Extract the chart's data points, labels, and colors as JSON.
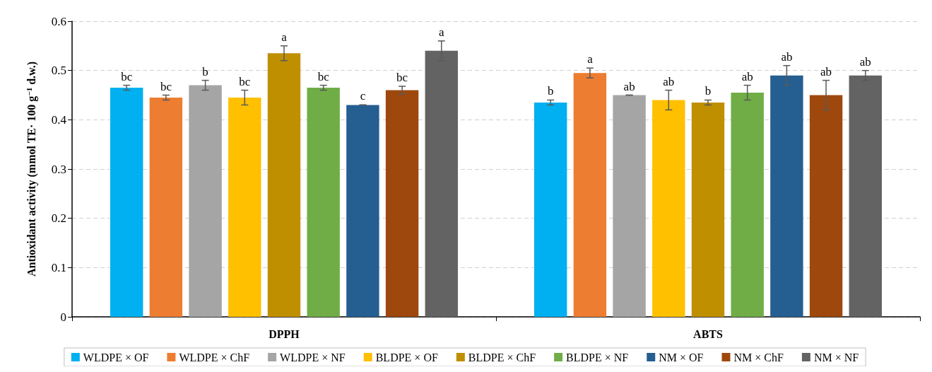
{
  "chart_data": {
    "type": "bar",
    "ylabel": "Antioxidant activity (mmol TE· 100 g$^{−1}$ d.w.)",
    "categories": [
      "DPPH",
      "ABTS"
    ],
    "ylim": [
      0,
      0.6
    ],
    "yticks": [
      0,
      0.1,
      0.2,
      0.3,
      0.4,
      0.5,
      0.6
    ],
    "grid": "y",
    "legend": "bottom",
    "series": [
      {
        "name": "WLDPE × OF",
        "color": "#00b0f0",
        "values": [
          0.465,
          0.435
        ],
        "errors": [
          0.005,
          0.005
        ],
        "value_labels": [
          "bc",
          "b"
        ]
      },
      {
        "name": "WLDPE × ChF",
        "color": "#ed7d31",
        "values": [
          0.445,
          0.495
        ],
        "errors": [
          0.005,
          0.01
        ],
        "value_labels": [
          "bc",
          "a"
        ]
      },
      {
        "name": "WLDPE × NF",
        "color": "#a5a5a5",
        "values": [
          0.47,
          0.45
        ],
        "errors": [
          0.01,
          0
        ],
        "value_labels": [
          "b",
          "ab"
        ]
      },
      {
        "name": "BLDPE × OF",
        "color": "#ffc000",
        "values": [
          0.445,
          0.44
        ],
        "errors": [
          0.015,
          0.02
        ],
        "value_labels": [
          "bc",
          "ab"
        ]
      },
      {
        "name": "BLDPE × ChF",
        "color": "#bf8f00",
        "values": [
          0.535,
          0.435
        ],
        "errors": [
          0.015,
          0.005
        ],
        "value_labels": [
          "a",
          "b"
        ]
      },
      {
        "name": "BLDPE × NF",
        "color": "#70ad47",
        "values": [
          0.465,
          0.455
        ],
        "errors": [
          0.005,
          0.015
        ],
        "value_labels": [
          "bc",
          "ab"
        ]
      },
      {
        "name": "NM × OF",
        "color": "#255e91",
        "values": [
          0.43,
          0.49
        ],
        "errors": [
          0,
          0.02
        ],
        "value_labels": [
          "c",
          "ab"
        ]
      },
      {
        "name": "NM × ChF",
        "color": "#9e480e",
        "values": [
          0.46,
          0.45
        ],
        "errors": [
          0.008,
          0.03
        ],
        "value_labels": [
          "bc",
          "ab"
        ]
      },
      {
        "name": "NM × NF",
        "color": "#636363",
        "values": [
          0.54,
          0.49
        ],
        "errors": [
          0.02,
          0.01
        ],
        "value_labels": [
          "a",
          "ab"
        ]
      }
    ]
  }
}
